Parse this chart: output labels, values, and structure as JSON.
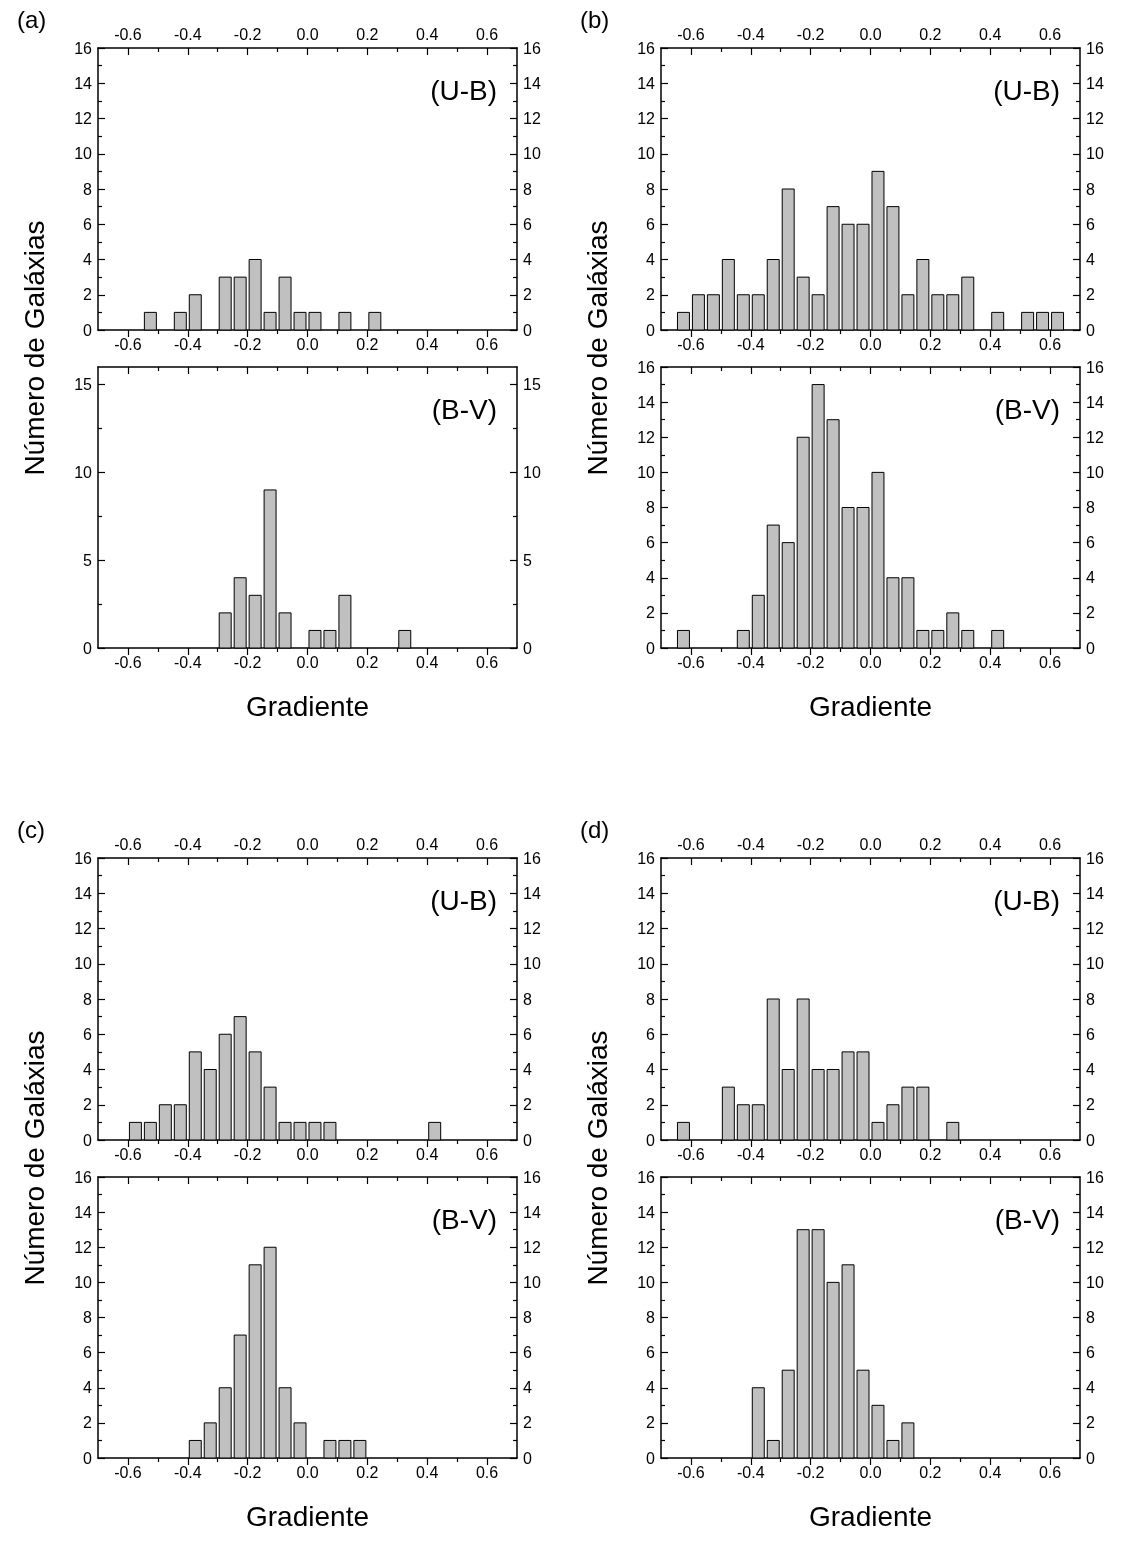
{
  "chart_data": [
    {
      "type": "histogram",
      "title": "(a)",
      "ylabel": "Número de Galáxias",
      "annotations": [
        "(U-B)"
      ],
      "color": "#c0c0c0",
      "bins": [
        -0.7,
        -0.65,
        -0.6,
        -0.55,
        -0.5,
        -0.45,
        -0.4,
        -0.35,
        -0.3,
        -0.25,
        -0.2,
        -0.15,
        -0.1,
        -0.05,
        0,
        0.05,
        0.1,
        0.15,
        0.2,
        0.25,
        0.3,
        0.35,
        0.4,
        0.45,
        0.5,
        0.55,
        0.6,
        0.65,
        0.7
      ],
      "values": [
        0,
        0,
        0,
        1,
        0,
        1,
        2,
        0,
        3,
        3,
        4,
        1,
        3,
        1,
        1,
        0,
        1,
        0,
        1,
        0,
        0,
        0,
        0,
        0,
        0,
        0,
        0,
        0
      ],
      "xlim": [
        -0.7,
        0.7
      ],
      "xticks": [
        -0.6,
        {
          "value": -0.5,
          "label": null
        },
        -0.4,
        {
          "value": -0.3,
          "label": null
        },
        -0.2,
        {
          "value": -0.1,
          "label": null
        },
        {
          "value": 0,
          "label": "0.0"
        },
        {
          "value": 0.1,
          "label": null
        },
        0.2,
        {
          "value": 0.3,
          "label": null
        },
        0.4,
        {
          "value": 0.5,
          "label": null
        },
        0.6
      ],
      "x2lim": [
        -0.7,
        0.7
      ],
      "x2ticks": [
        -0.6,
        {
          "value": -0.5,
          "label": null
        },
        -0.4,
        {
          "value": -0.3,
          "label": null
        },
        -0.2,
        {
          "value": -0.1,
          "label": null
        },
        {
          "value": 0,
          "label": "0.0"
        },
        {
          "value": 0.1,
          "label": null
        },
        0.2,
        {
          "value": 0.3,
          "label": null
        },
        0.4,
        {
          "value": 0.5,
          "label": null
        },
        0.6
      ],
      "ylim": [
        0,
        16
      ],
      "yticks": [
        0,
        {
          "value": 1,
          "label": null
        },
        2,
        {
          "value": 3,
          "label": null
        },
        4,
        {
          "value": 5,
          "label": null
        },
        6,
        {
          "value": 7,
          "label": null
        },
        8,
        {
          "value": 9,
          "label": null
        },
        10,
        {
          "value": 11,
          "label": null
        },
        12,
        {
          "value": 13,
          "label": null
        },
        14,
        {
          "value": 15,
          "label": null
        },
        16
      ],
      "y2lim": [
        0,
        16
      ],
      "y2ticks": [
        0,
        {
          "value": 1,
          "label": null
        },
        2,
        {
          "value": 3,
          "label": null
        },
        4,
        {
          "value": 5,
          "label": null
        },
        6,
        {
          "value": 7,
          "label": null
        },
        8,
        {
          "value": 9,
          "label": null
        },
        10,
        {
          "value": 11,
          "label": null
        },
        12,
        {
          "value": 13,
          "label": null
        },
        14,
        {
          "value": 15,
          "label": null
        },
        16
      ]
    },
    {
      "type": "histogram",
      "xlabel": "Gradiente",
      "annotations": [
        "(B-V)"
      ],
      "color": "#c0c0c0",
      "bins": [
        -0.7,
        -0.65,
        -0.6,
        -0.55,
        -0.5,
        -0.45,
        -0.4,
        -0.35,
        -0.3,
        -0.25,
        -0.2,
        -0.15,
        -0.1,
        -0.05,
        0,
        0.05,
        0.1,
        0.15,
        0.2,
        0.25,
        0.3,
        0.35,
        0.4,
        0.45,
        0.5,
        0.55,
        0.6,
        0.65,
        0.7
      ],
      "values": [
        0,
        0,
        0,
        0,
        0,
        0,
        0,
        0,
        2,
        4,
        3,
        9,
        2,
        0,
        1,
        1,
        3,
        0,
        0,
        0,
        1,
        0,
        0,
        0,
        0,
        0,
        0,
        0
      ],
      "xlim": [
        -0.7,
        0.7
      ],
      "xticks": [
        -0.6,
        {
          "value": -0.5,
          "label": null
        },
        -0.4,
        {
          "value": -0.3,
          "label": null
        },
        -0.2,
        {
          "value": -0.1,
          "label": null
        },
        {
          "value": 0,
          "label": "0.0"
        },
        {
          "value": 0.1,
          "label": null
        },
        0.2,
        {
          "value": 0.3,
          "label": null
        },
        0.4,
        {
          "value": 0.5,
          "label": null
        },
        0.6
      ],
      "ylim": [
        0,
        16
      ],
      "yticks": [
        0,
        {
          "value": 2.5,
          "label": null
        },
        5,
        {
          "value": 7.5,
          "label": null
        },
        10,
        {
          "value": 12.5,
          "label": null
        },
        15
      ],
      "y2lim": [
        0,
        16
      ],
      "y2ticks": [
        0,
        {
          "value": 2.5,
          "label": null
        },
        5,
        {
          "value": 7.5,
          "label": null
        },
        10,
        {
          "value": 12.5,
          "label": null
        },
        15
      ]
    },
    {
      "type": "histogram",
      "title": "(b)",
      "ylabel": "Número de Galáxias",
      "annotations": [
        "(U-B)"
      ],
      "color": "#c0c0c0",
      "bins": [
        -0.7,
        -0.65,
        -0.6,
        -0.55,
        -0.5,
        -0.45,
        -0.4,
        -0.35,
        -0.3,
        -0.25,
        -0.2,
        -0.15,
        -0.1,
        -0.05,
        0,
        0.05,
        0.1,
        0.15,
        0.2,
        0.25,
        0.3,
        0.35,
        0.4,
        0.45,
        0.5,
        0.55,
        0.6,
        0.65,
        0.7
      ],
      "values": [
        0,
        1,
        2,
        2,
        4,
        2,
        2,
        4,
        8,
        3,
        2,
        7,
        6,
        6,
        9,
        7,
        2,
        4,
        2,
        2,
        3,
        0,
        1,
        0,
        1,
        1,
        1,
        0
      ],
      "xlim": [
        -0.7,
        0.7
      ],
      "xticks": [
        -0.6,
        {
          "value": -0.5,
          "label": null
        },
        -0.4,
        {
          "value": -0.3,
          "label": null
        },
        -0.2,
        {
          "value": -0.1,
          "label": null
        },
        {
          "value": 0,
          "label": "0.0"
        },
        {
          "value": 0.1,
          "label": null
        },
        0.2,
        {
          "value": 0.3,
          "label": null
        },
        0.4,
        {
          "value": 0.5,
          "label": null
        },
        0.6
      ],
      "x2lim": [
        -0.7,
        0.7
      ],
      "x2ticks": [
        -0.6,
        {
          "value": -0.5,
          "label": null
        },
        -0.4,
        {
          "value": -0.3,
          "label": null
        },
        -0.2,
        {
          "value": -0.1,
          "label": null
        },
        {
          "value": 0,
          "label": "0.0"
        },
        {
          "value": 0.1,
          "label": null
        },
        0.2,
        {
          "value": 0.3,
          "label": null
        },
        0.4,
        {
          "value": 0.5,
          "label": null
        },
        0.6
      ],
      "ylim": [
        0,
        16
      ],
      "yticks": [
        0,
        {
          "value": 1,
          "label": null
        },
        2,
        {
          "value": 3,
          "label": null
        },
        4,
        {
          "value": 5,
          "label": null
        },
        6,
        {
          "value": 7,
          "label": null
        },
        8,
        {
          "value": 9,
          "label": null
        },
        10,
        {
          "value": 11,
          "label": null
        },
        12,
        {
          "value": 13,
          "label": null
        },
        14,
        {
          "value": 15,
          "label": null
        },
        16
      ],
      "y2lim": [
        0,
        16
      ],
      "y2ticks": [
        0,
        {
          "value": 1,
          "label": null
        },
        2,
        {
          "value": 3,
          "label": null
        },
        4,
        {
          "value": 5,
          "label": null
        },
        6,
        {
          "value": 7,
          "label": null
        },
        8,
        {
          "value": 9,
          "label": null
        },
        10,
        {
          "value": 11,
          "label": null
        },
        12,
        {
          "value": 13,
          "label": null
        },
        14,
        {
          "value": 15,
          "label": null
        },
        16
      ]
    },
    {
      "type": "histogram",
      "xlabel": "Gradiente",
      "annotations": [
        "(B-V)"
      ],
      "color": "#c0c0c0",
      "bins": [
        -0.7,
        -0.65,
        -0.6,
        -0.55,
        -0.5,
        -0.45,
        -0.4,
        -0.35,
        -0.3,
        -0.25,
        -0.2,
        -0.15,
        -0.1,
        -0.05,
        0,
        0.05,
        0.1,
        0.15,
        0.2,
        0.25,
        0.3,
        0.35,
        0.4,
        0.45,
        0.5,
        0.55,
        0.6,
        0.65,
        0.7
      ],
      "values": [
        0,
        1,
        0,
        0,
        0,
        1,
        3,
        7,
        6,
        12,
        15,
        13,
        8,
        8,
        10,
        4,
        4,
        1,
        1,
        2,
        1,
        0,
        1,
        0,
        0,
        0,
        0,
        0
      ],
      "xlim": [
        -0.7,
        0.7
      ],
      "xticks": [
        -0.6,
        {
          "value": -0.5,
          "label": null
        },
        -0.4,
        {
          "value": -0.3,
          "label": null
        },
        -0.2,
        {
          "value": -0.1,
          "label": null
        },
        {
          "value": 0,
          "label": "0.0"
        },
        {
          "value": 0.1,
          "label": null
        },
        0.2,
        {
          "value": 0.3,
          "label": null
        },
        0.4,
        {
          "value": 0.5,
          "label": null
        },
        0.6
      ],
      "ylim": [
        0,
        16
      ],
      "yticks": [
        0,
        {
          "value": 1,
          "label": null
        },
        2,
        {
          "value": 3,
          "label": null
        },
        4,
        {
          "value": 5,
          "label": null
        },
        6,
        {
          "value": 7,
          "label": null
        },
        8,
        {
          "value": 9,
          "label": null
        },
        10,
        {
          "value": 11,
          "label": null
        },
        12,
        {
          "value": 13,
          "label": null
        },
        14,
        {
          "value": 15,
          "label": null
        },
        16
      ],
      "y2lim": [
        0,
        16
      ],
      "y2ticks": [
        0,
        {
          "value": 1,
          "label": null
        },
        2,
        {
          "value": 3,
          "label": null
        },
        4,
        {
          "value": 5,
          "label": null
        },
        6,
        {
          "value": 7,
          "label": null
        },
        8,
        {
          "value": 9,
          "label": null
        },
        10,
        {
          "value": 11,
          "label": null
        },
        12,
        {
          "value": 13,
          "label": null
        },
        14,
        {
          "value": 15,
          "label": null
        },
        16
      ]
    },
    {
      "type": "histogram",
      "title": "(c)",
      "ylabel": "Número de Galáxias",
      "annotations": [
        "(U-B)"
      ],
      "color": "#c0c0c0",
      "bins": [
        -0.7,
        -0.65,
        -0.6,
        -0.55,
        -0.5,
        -0.45,
        -0.4,
        -0.35,
        -0.3,
        -0.25,
        -0.2,
        -0.15,
        -0.1,
        -0.05,
        0,
        0.05,
        0.1,
        0.15,
        0.2,
        0.25,
        0.3,
        0.35,
        0.4,
        0.45,
        0.5,
        0.55,
        0.6,
        0.65,
        0.7
      ],
      "values": [
        0,
        0,
        1,
        1,
        2,
        2,
        5,
        4,
        6,
        7,
        5,
        3,
        1,
        1,
        1,
        1,
        0,
        0,
        0,
        0,
        0,
        0,
        1,
        0,
        0,
        0,
        0,
        0
      ],
      "xlim": [
        -0.7,
        0.7
      ],
      "xticks": [
        -0.6,
        {
          "value": -0.5,
          "label": null
        },
        -0.4,
        {
          "value": -0.3,
          "label": null
        },
        -0.2,
        {
          "value": -0.1,
          "label": null
        },
        {
          "value": 0,
          "label": "0.0"
        },
        {
          "value": 0.1,
          "label": null
        },
        0.2,
        {
          "value": 0.3,
          "label": null
        },
        0.4,
        {
          "value": 0.5,
          "label": null
        },
        0.6
      ],
      "x2lim": [
        -0.7,
        0.7
      ],
      "x2ticks": [
        -0.6,
        {
          "value": -0.5,
          "label": null
        },
        -0.4,
        {
          "value": -0.3,
          "label": null
        },
        -0.2,
        {
          "value": -0.1,
          "label": null
        },
        {
          "value": 0,
          "label": "0.0"
        },
        {
          "value": 0.1,
          "label": null
        },
        0.2,
        {
          "value": 0.3,
          "label": null
        },
        0.4,
        {
          "value": 0.5,
          "label": null
        },
        0.6
      ],
      "ylim": [
        0,
        16
      ],
      "yticks": [
        0,
        {
          "value": 1,
          "label": null
        },
        2,
        {
          "value": 3,
          "label": null
        },
        4,
        {
          "value": 5,
          "label": null
        },
        6,
        {
          "value": 7,
          "label": null
        },
        8,
        {
          "value": 9,
          "label": null
        },
        10,
        {
          "value": 11,
          "label": null
        },
        12,
        {
          "value": 13,
          "label": null
        },
        14,
        {
          "value": 15,
          "label": null
        },
        16
      ],
      "y2lim": [
        0,
        16
      ],
      "y2ticks": [
        0,
        {
          "value": 1,
          "label": null
        },
        2,
        {
          "value": 3,
          "label": null
        },
        4,
        {
          "value": 5,
          "label": null
        },
        6,
        {
          "value": 7,
          "label": null
        },
        8,
        {
          "value": 9,
          "label": null
        },
        10,
        {
          "value": 11,
          "label": null
        },
        12,
        {
          "value": 13,
          "label": null
        },
        14,
        {
          "value": 15,
          "label": null
        },
        16
      ]
    },
    {
      "type": "histogram",
      "xlabel": "Gradiente",
      "annotations": [
        "(B-V)"
      ],
      "color": "#c0c0c0",
      "bins": [
        -0.7,
        -0.65,
        -0.6,
        -0.55,
        -0.5,
        -0.45,
        -0.4,
        -0.35,
        -0.3,
        -0.25,
        -0.2,
        -0.15,
        -0.1,
        -0.05,
        0,
        0.05,
        0.1,
        0.15,
        0.2,
        0.25,
        0.3,
        0.35,
        0.4,
        0.45,
        0.5,
        0.55,
        0.6,
        0.65,
        0.7
      ],
      "values": [
        0,
        0,
        0,
        0,
        0,
        0,
        1,
        2,
        4,
        7,
        11,
        12,
        4,
        2,
        0,
        1,
        1,
        1,
        0,
        0,
        0,
        0,
        0,
        0,
        0,
        0,
        0,
        0
      ],
      "xlim": [
        -0.7,
        0.7
      ],
      "xticks": [
        -0.6,
        {
          "value": -0.5,
          "label": null
        },
        -0.4,
        {
          "value": -0.3,
          "label": null
        },
        -0.2,
        {
          "value": -0.1,
          "label": null
        },
        {
          "value": 0,
          "label": "0.0"
        },
        {
          "value": 0.1,
          "label": null
        },
        0.2,
        {
          "value": 0.3,
          "label": null
        },
        0.4,
        {
          "value": 0.5,
          "label": null
        },
        0.6
      ],
      "ylim": [
        0,
        16
      ],
      "yticks": [
        0,
        {
          "value": 1,
          "label": null
        },
        2,
        {
          "value": 3,
          "label": null
        },
        4,
        {
          "value": 5,
          "label": null
        },
        6,
        {
          "value": 7,
          "label": null
        },
        8,
        {
          "value": 9,
          "label": null
        },
        10,
        {
          "value": 11,
          "label": null
        },
        12,
        {
          "value": 13,
          "label": null
        },
        14,
        {
          "value": 15,
          "label": null
        },
        16
      ],
      "y2lim": [
        0,
        16
      ],
      "y2ticks": [
        0,
        {
          "value": 1,
          "label": null
        },
        2,
        {
          "value": 3,
          "label": null
        },
        4,
        {
          "value": 5,
          "label": null
        },
        6,
        {
          "value": 7,
          "label": null
        },
        8,
        {
          "value": 9,
          "label": null
        },
        10,
        {
          "value": 11,
          "label": null
        },
        12,
        {
          "value": 13,
          "label": null
        },
        14,
        {
          "value": 15,
          "label": null
        },
        16
      ]
    },
    {
      "type": "histogram",
      "title": "(d)",
      "ylabel": "Número de Galáxias",
      "annotations": [
        "(U-B)"
      ],
      "color": "#c0c0c0",
      "bins": [
        -0.7,
        -0.65,
        -0.6,
        -0.55,
        -0.5,
        -0.45,
        -0.4,
        -0.35,
        -0.3,
        -0.25,
        -0.2,
        -0.15,
        -0.1,
        -0.05,
        0,
        0.05,
        0.1,
        0.15,
        0.2,
        0.25,
        0.3,
        0.35,
        0.4,
        0.45,
        0.5,
        0.55,
        0.6,
        0.65,
        0.7
      ],
      "values": [
        0,
        1,
        0,
        0,
        3,
        2,
        2,
        8,
        4,
        8,
        4,
        4,
        5,
        5,
        1,
        2,
        3,
        3,
        0,
        1,
        0,
        0,
        0,
        0,
        0,
        0,
        0,
        0
      ],
      "xlim": [
        -0.7,
        0.7
      ],
      "xticks": [
        -0.6,
        {
          "value": -0.5,
          "label": null
        },
        -0.4,
        {
          "value": -0.3,
          "label": null
        },
        -0.2,
        {
          "value": -0.1,
          "label": null
        },
        {
          "value": 0,
          "label": "0.0"
        },
        {
          "value": 0.1,
          "label": null
        },
        0.2,
        {
          "value": 0.3,
          "label": null
        },
        0.4,
        {
          "value": 0.5,
          "label": null
        },
        0.6
      ],
      "x2lim": [
        -0.7,
        0.7
      ],
      "x2ticks": [
        -0.6,
        {
          "value": -0.5,
          "label": null
        },
        -0.4,
        {
          "value": -0.3,
          "label": null
        },
        -0.2,
        {
          "value": -0.1,
          "label": null
        },
        {
          "value": 0,
          "label": "0.0"
        },
        {
          "value": 0.1,
          "label": null
        },
        0.2,
        {
          "value": 0.3,
          "label": null
        },
        0.4,
        {
          "value": 0.5,
          "label": null
        },
        0.6
      ],
      "ylim": [
        0,
        16
      ],
      "yticks": [
        0,
        {
          "value": 1,
          "label": null
        },
        2,
        {
          "value": 3,
          "label": null
        },
        4,
        {
          "value": 5,
          "label": null
        },
        6,
        {
          "value": 7,
          "label": null
        },
        8,
        {
          "value": 9,
          "label": null
        },
        10,
        {
          "value": 11,
          "label": null
        },
        12,
        {
          "value": 13,
          "label": null
        },
        14,
        {
          "value": 15,
          "label": null
        },
        16
      ],
      "y2lim": [
        0,
        16
      ],
      "y2ticks": [
        0,
        {
          "value": 1,
          "label": null
        },
        2,
        {
          "value": 3,
          "label": null
        },
        4,
        {
          "value": 5,
          "label": null
        },
        6,
        {
          "value": 7,
          "label": null
        },
        8,
        {
          "value": 9,
          "label": null
        },
        10,
        {
          "value": 11,
          "label": null
        },
        12,
        {
          "value": 13,
          "label": null
        },
        14,
        {
          "value": 15,
          "label": null
        },
        16
      ]
    },
    {
      "type": "histogram",
      "xlabel": "Gradiente",
      "annotations": [
        "(B-V)"
      ],
      "color": "#c0c0c0",
      "bins": [
        -0.7,
        -0.65,
        -0.6,
        -0.55,
        -0.5,
        -0.45,
        -0.4,
        -0.35,
        -0.3,
        -0.25,
        -0.2,
        -0.15,
        -0.1,
        -0.05,
        0,
        0.05,
        0.1,
        0.15,
        0.2,
        0.25,
        0.3,
        0.35,
        0.4,
        0.45,
        0.5,
        0.55,
        0.6,
        0.65,
        0.7
      ],
      "values": [
        0,
        0,
        0,
        0,
        0,
        0,
        4,
        1,
        5,
        13,
        13,
        10,
        11,
        5,
        3,
        1,
        2,
        0,
        0,
        0,
        0,
        0,
        0,
        0,
        0,
        0,
        0,
        0
      ],
      "xlim": [
        -0.7,
        0.7
      ],
      "xticks": [
        -0.6,
        {
          "value": -0.5,
          "label": null
        },
        -0.4,
        {
          "value": -0.3,
          "label": null
        },
        -0.2,
        {
          "value": -0.1,
          "label": null
        },
        {
          "value": 0,
          "label": "0.0"
        },
        {
          "value": 0.1,
          "label": null
        },
        0.2,
        {
          "value": 0.3,
          "label": null
        },
        0.4,
        {
          "value": 0.5,
          "label": null
        },
        0.6
      ],
      "ylim": [
        0,
        16
      ],
      "yticks": [
        0,
        {
          "value": 1,
          "label": null
        },
        2,
        {
          "value": 3,
          "label": null
        },
        4,
        {
          "value": 5,
          "label": null
        },
        6,
        {
          "value": 7,
          "label": null
        },
        8,
        {
          "value": 9,
          "label": null
        },
        10,
        {
          "value": 11,
          "label": null
        },
        12,
        {
          "value": 13,
          "label": null
        },
        14,
        {
          "value": 15,
          "label": null
        },
        16
      ],
      "y2lim": [
        0,
        16
      ],
      "y2ticks": [
        0,
        {
          "value": 1,
          "label": null
        },
        2,
        {
          "value": 3,
          "label": null
        },
        4,
        {
          "value": 5,
          "label": null
        },
        6,
        {
          "value": 7,
          "label": null
        },
        8,
        {
          "value": 9,
          "label": null
        },
        10,
        {
          "value": 11,
          "label": null
        },
        12,
        {
          "value": 13,
          "label": null
        },
        14,
        {
          "value": 15,
          "label": null
        },
        16
      ]
    }
  ]
}
